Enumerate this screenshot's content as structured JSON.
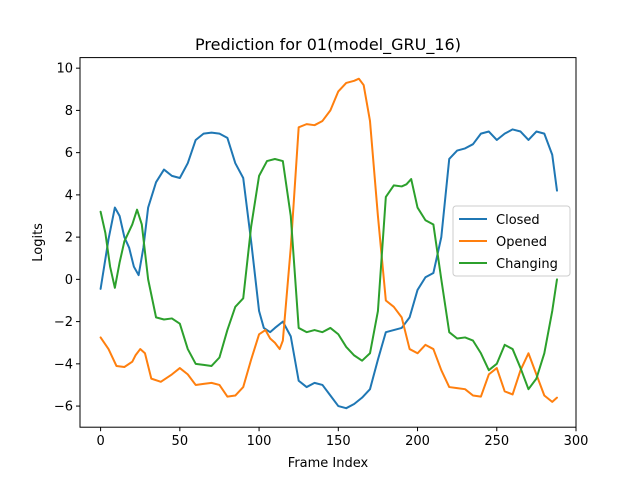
{
  "chart_data": {
    "type": "line",
    "title": "Prediction for 01(model_GRU_16)",
    "xlabel": "Frame Index",
    "ylabel": "Logits",
    "xlim": [
      -13,
      300
    ],
    "ylim": [
      -7.0,
      10.5
    ],
    "xticks": [
      0,
      50,
      100,
      150,
      200,
      250,
      300
    ],
    "yticks": [
      -6,
      -4,
      -2,
      0,
      2,
      4,
      6,
      8,
      10
    ],
    "grid": false,
    "legend": "center-right",
    "series": [
      {
        "name": "Closed",
        "color": "#1f77b4",
        "x": [
          0,
          5,
          9,
          12,
          15,
          18,
          21,
          24,
          27,
          30,
          35,
          40,
          45,
          50,
          55,
          60,
          65,
          70,
          75,
          80,
          85,
          90,
          95,
          100,
          103,
          107,
          110,
          115,
          120,
          125,
          130,
          135,
          140,
          145,
          150,
          155,
          160,
          165,
          170,
          175,
          180,
          185,
          190,
          195,
          200,
          205,
          210,
          215,
          220,
          225,
          230,
          235,
          240,
          245,
          250,
          255,
          260,
          265,
          270,
          275,
          280,
          285,
          288
        ],
        "values": [
          -0.45,
          1.9,
          3.4,
          3.0,
          2.0,
          1.5,
          0.6,
          0.2,
          1.5,
          3.4,
          4.6,
          5.2,
          4.9,
          4.8,
          5.5,
          6.6,
          6.9,
          6.95,
          6.9,
          6.7,
          5.5,
          4.8,
          1.8,
          -1.5,
          -2.3,
          -2.5,
          -2.3,
          -2.0,
          -2.7,
          -4.8,
          -5.1,
          -4.9,
          -5.0,
          -5.5,
          -6.0,
          -6.1,
          -5.9,
          -5.6,
          -5.2,
          -3.8,
          -2.5,
          -2.4,
          -2.3,
          -1.8,
          -0.5,
          0.1,
          0.3,
          2.0,
          5.7,
          6.1,
          6.2,
          6.4,
          6.9,
          7.0,
          6.6,
          6.9,
          7.1,
          7.0,
          6.6,
          7.0,
          6.9,
          5.9,
          4.2
        ]
      },
      {
        "name": "Opened",
        "color": "#ff7f0e",
        "x": [
          0,
          5,
          10,
          15,
          20,
          22,
          25,
          28,
          32,
          38,
          45,
          50,
          55,
          60,
          65,
          70,
          75,
          80,
          85,
          90,
          95,
          100,
          104,
          107,
          110,
          113,
          115,
          120,
          125,
          130,
          135,
          140,
          145,
          150,
          155,
          160,
          163,
          166,
          170,
          175,
          180,
          185,
          190,
          195,
          200,
          205,
          210,
          215,
          220,
          225,
          230,
          235,
          240,
          245,
          250,
          255,
          260,
          265,
          270,
          275,
          280,
          285,
          288
        ],
        "values": [
          -2.75,
          -3.3,
          -4.1,
          -4.15,
          -3.9,
          -3.6,
          -3.3,
          -3.5,
          -4.7,
          -4.85,
          -4.5,
          -4.2,
          -4.5,
          -5.0,
          -4.95,
          -4.9,
          -5.0,
          -5.55,
          -5.5,
          -5.1,
          -3.8,
          -2.6,
          -2.4,
          -2.8,
          -3.0,
          -3.3,
          -2.9,
          1.5,
          7.2,
          7.35,
          7.3,
          7.5,
          8.0,
          8.9,
          9.3,
          9.4,
          9.5,
          9.2,
          7.5,
          3.0,
          -1.0,
          -1.3,
          -1.8,
          -3.3,
          -3.5,
          -3.1,
          -3.3,
          -4.3,
          -5.1,
          -5.15,
          -5.2,
          -5.5,
          -5.55,
          -4.5,
          -4.2,
          -5.3,
          -5.45,
          -4.3,
          -3.5,
          -4.5,
          -5.5,
          -5.8,
          -5.6
        ]
      },
      {
        "name": "Changing",
        "color": "#2ca02c",
        "x": [
          0,
          3,
          6,
          9,
          12,
          15,
          20,
          23,
          26,
          30,
          35,
          40,
          45,
          50,
          55,
          60,
          65,
          70,
          75,
          80,
          85,
          90,
          95,
          100,
          105,
          110,
          115,
          120,
          125,
          130,
          135,
          140,
          145,
          150,
          155,
          160,
          165,
          170,
          175,
          180,
          185,
          190,
          193,
          196,
          200,
          205,
          210,
          215,
          220,
          225,
          230,
          235,
          240,
          245,
          250,
          255,
          260,
          265,
          270,
          275,
          280,
          285,
          288
        ],
        "values": [
          3.2,
          2.2,
          0.6,
          -0.4,
          0.8,
          1.8,
          2.6,
          3.3,
          2.6,
          0.0,
          -1.8,
          -1.9,
          -1.85,
          -2.1,
          -3.3,
          -4.0,
          -4.05,
          -4.1,
          -3.7,
          -2.4,
          -1.3,
          -0.9,
          2.5,
          4.9,
          5.6,
          5.7,
          5.6,
          3.0,
          -2.3,
          -2.5,
          -2.4,
          -2.5,
          -2.3,
          -2.6,
          -3.2,
          -3.6,
          -3.85,
          -3.5,
          -1.5,
          3.9,
          4.45,
          4.4,
          4.5,
          4.75,
          3.4,
          2.8,
          2.6,
          0.0,
          -2.5,
          -2.8,
          -2.75,
          -2.9,
          -3.5,
          -4.3,
          -4.0,
          -3.1,
          -3.3,
          -4.2,
          -5.2,
          -4.7,
          -3.5,
          -1.5,
          0.0
        ]
      }
    ]
  }
}
